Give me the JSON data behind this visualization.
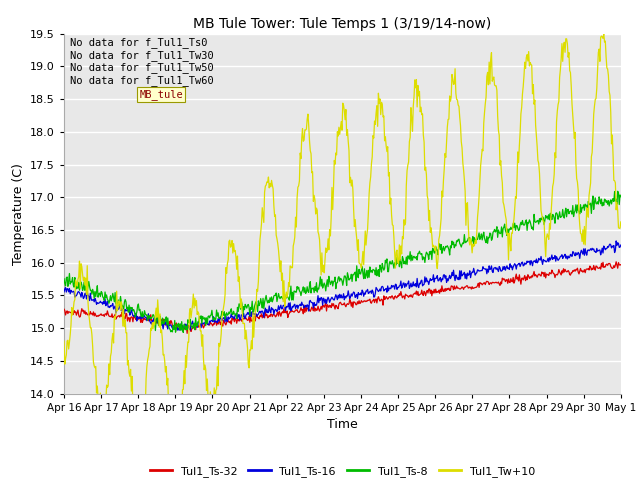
{
  "title": "MB Tule Tower: Tule Temps 1 (3/19/14-now)",
  "xlabel": "Time",
  "ylabel": "Temperature (C)",
  "ylim": [
    14.0,
    19.5
  ],
  "yticks": [
    14.0,
    14.5,
    15.0,
    15.5,
    16.0,
    16.5,
    17.0,
    17.5,
    18.0,
    18.5,
    19.0,
    19.5
  ],
  "xtick_labels": [
    "Apr 16",
    "Apr 17",
    "Apr 18",
    "Apr 19",
    "Apr 20",
    "Apr 21",
    "Apr 22",
    "Apr 23",
    "Apr 24",
    "Apr 25",
    "Apr 26",
    "Apr 27",
    "Apr 28",
    "Apr 29",
    "Apr 30",
    "May 1"
  ],
  "colors": {
    "Tul1_Ts-32": "#dd0000",
    "Tul1_Ts-16": "#0000dd",
    "Tul1_Ts-8": "#00bb00",
    "Tul1_Tw+10": "#dddd00"
  },
  "no_data_lines": [
    "No data for f_Tul1_Ts0",
    "No data for f_Tul1_Tw30",
    "No data for f_Tul1_Tw50",
    "No data for f_Tul1_Tw60"
  ],
  "plot_bg_color": "#e8e8e8",
  "grid_color": "#ffffff",
  "tooltip_text": "MB_tule",
  "legend_labels": [
    "Tul1_Ts-32",
    "Tul1_Ts-16",
    "Tul1_Ts-8",
    "Tul1_Tw+10"
  ]
}
